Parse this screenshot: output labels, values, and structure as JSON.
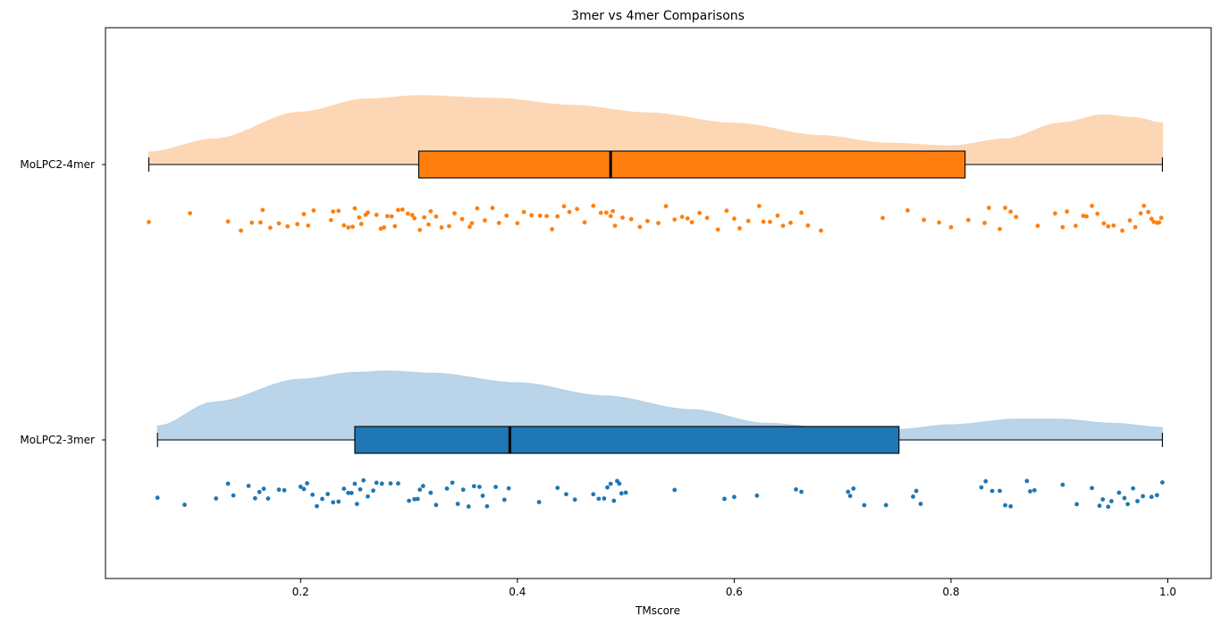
{
  "chart_data": {
    "type": "raincloud",
    "title": "3mer vs 4mer Comparisons",
    "xlabel": "TMscore",
    "ylabel": "",
    "xlim": [
      0.02,
      1.04
    ],
    "xticks": [
      0.2,
      0.4,
      0.6,
      0.8,
      1.0
    ],
    "xtick_labels": [
      "0.2",
      "0.4",
      "0.6",
      "0.8",
      "1.0"
    ],
    "grid": false,
    "series": [
      {
        "name": "MoLPC2-4mer",
        "box_color": "#ff7f0e",
        "density_color": "#fdd5b1",
        "whisker_low": 0.06,
        "q1": 0.309,
        "median": 0.486,
        "q3": 0.813,
        "whisker_high": 0.995,
        "density_profile": [
          [
            0.06,
            0.18
          ],
          [
            0.12,
            0.37
          ],
          [
            0.2,
            0.76
          ],
          [
            0.26,
            0.95
          ],
          [
            0.31,
            1.0
          ],
          [
            0.38,
            0.96
          ],
          [
            0.45,
            0.86
          ],
          [
            0.52,
            0.75
          ],
          [
            0.6,
            0.6
          ],
          [
            0.68,
            0.42
          ],
          [
            0.74,
            0.31
          ],
          [
            0.8,
            0.27
          ],
          [
            0.85,
            0.37
          ],
          [
            0.9,
            0.6
          ],
          [
            0.94,
            0.72
          ],
          [
            0.97,
            0.68
          ],
          [
            0.995,
            0.6
          ]
        ],
        "points": [
          0.06,
          0.098,
          0.133,
          0.145,
          0.155,
          0.163,
          0.165,
          0.172,
          0.18,
          0.188,
          0.197,
          0.203,
          0.207,
          0.212,
          0.228,
          0.23,
          0.235,
          0.24,
          0.244,
          0.248,
          0.25,
          0.254,
          0.256,
          0.26,
          0.262,
          0.27,
          0.274,
          0.277,
          0.28,
          0.284,
          0.287,
          0.29,
          0.294,
          0.299,
          0.303,
          0.305,
          0.31,
          0.314,
          0.318,
          0.32,
          0.325,
          0.33,
          0.337,
          0.342,
          0.349,
          0.356,
          0.358,
          0.363,
          0.37,
          0.377,
          0.383,
          0.39,
          0.4,
          0.406,
          0.413,
          0.421,
          0.427,
          0.432,
          0.437,
          0.443,
          0.448,
          0.455,
          0.462,
          0.47,
          0.477,
          0.482,
          0.486,
          0.488,
          0.49,
          0.497,
          0.505,
          0.513,
          0.52,
          0.53,
          0.537,
          0.545,
          0.552,
          0.557,
          0.561,
          0.568,
          0.575,
          0.585,
          0.593,
          0.6,
          0.605,
          0.613,
          0.623,
          0.627,
          0.633,
          0.64,
          0.645,
          0.652,
          0.662,
          0.668,
          0.68,
          0.737,
          0.76,
          0.775,
          0.789,
          0.8,
          0.816,
          0.831,
          0.835,
          0.845,
          0.85,
          0.855,
          0.86,
          0.88,
          0.896,
          0.903,
          0.907,
          0.915,
          0.922,
          0.925,
          0.93,
          0.935,
          0.941,
          0.945,
          0.95,
          0.958,
          0.965,
          0.97,
          0.975,
          0.978,
          0.982,
          0.985,
          0.987,
          0.99,
          0.992,
          0.994
        ]
      },
      {
        "name": "MoLPC2-3mer",
        "box_color": "#1f77b4",
        "density_color": "#b6d2e8",
        "whisker_low": 0.068,
        "q1": 0.25,
        "median": 0.393,
        "q3": 0.752,
        "whisker_high": 0.995,
        "density_profile": [
          [
            0.068,
            0.2
          ],
          [
            0.12,
            0.55
          ],
          [
            0.2,
            0.88
          ],
          [
            0.25,
            0.98
          ],
          [
            0.28,
            1.0
          ],
          [
            0.32,
            0.97
          ],
          [
            0.4,
            0.83
          ],
          [
            0.48,
            0.64
          ],
          [
            0.56,
            0.44
          ],
          [
            0.63,
            0.24
          ],
          [
            0.7,
            0.15
          ],
          [
            0.75,
            0.15
          ],
          [
            0.8,
            0.22
          ],
          [
            0.86,
            0.3
          ],
          [
            0.9,
            0.3
          ],
          [
            0.95,
            0.24
          ],
          [
            0.995,
            0.18
          ]
        ],
        "points": [
          0.068,
          0.093,
          0.122,
          0.133,
          0.138,
          0.152,
          0.158,
          0.162,
          0.166,
          0.17,
          0.18,
          0.185,
          0.2,
          0.203,
          0.206,
          0.211,
          0.215,
          0.22,
          0.225,
          0.23,
          0.235,
          0.24,
          0.244,
          0.247,
          0.25,
          0.252,
          0.255,
          0.258,
          0.262,
          0.267,
          0.27,
          0.275,
          0.283,
          0.29,
          0.3,
          0.305,
          0.308,
          0.31,
          0.313,
          0.32,
          0.325,
          0.335,
          0.34,
          0.345,
          0.35,
          0.355,
          0.36,
          0.365,
          0.368,
          0.372,
          0.38,
          0.388,
          0.392,
          0.42,
          0.437,
          0.445,
          0.453,
          0.47,
          0.475,
          0.48,
          0.483,
          0.486,
          0.489,
          0.492,
          0.494,
          0.496,
          0.5,
          0.545,
          0.591,
          0.6,
          0.621,
          0.657,
          0.662,
          0.705,
          0.707,
          0.71,
          0.72,
          0.74,
          0.765,
          0.768,
          0.772,
          0.828,
          0.832,
          0.838,
          0.845,
          0.85,
          0.855,
          0.87,
          0.873,
          0.877,
          0.903,
          0.916,
          0.93,
          0.937,
          0.94,
          0.945,
          0.948,
          0.955,
          0.96,
          0.963,
          0.968,
          0.972,
          0.977,
          0.985,
          0.99,
          0.995
        ]
      }
    ]
  }
}
